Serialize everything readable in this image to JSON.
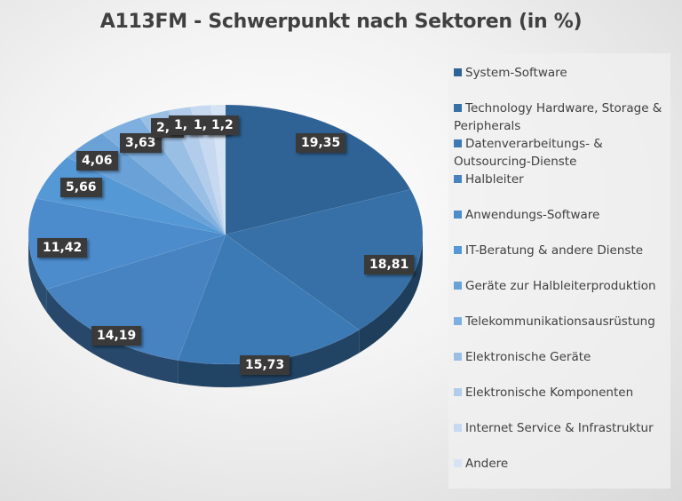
{
  "title": "A113FM - Schwerpunkt nach Sektoren (in %)",
  "legend": [
    {
      "label": "System-Software",
      "color": "#2f6396"
    },
    {
      "label": "Technology Hardware, Storage & Peripherals",
      "color": "#3670a6"
    },
    {
      "label": "Datenverarbeitungs- & Outsourcing-Dienste",
      "color": "#3c7ab5"
    },
    {
      "label": "Halbleiter",
      "color": "#4783c0"
    },
    {
      "label": "Anwendungs-Software",
      "color": "#4d8ccc"
    },
    {
      "label": "IT-Beratung & andere Dienste",
      "color": "#5598d6"
    },
    {
      "label": "Geräte zur Halbleiterproduktion",
      "color": "#6aa2d8"
    },
    {
      "label": "Telekommunikationsausrüstung",
      "color": "#7eafdf"
    },
    {
      "label": "Elektronische Geräte",
      "color": "#9abfe5"
    },
    {
      "label": "Elektronische Komponenten",
      "color": "#b2cdeb"
    },
    {
      "label": "Internet Service & Infrastruktur",
      "color": "#c6d9f0"
    },
    {
      "label": "Andere",
      "color": "#d6e3f4"
    }
  ],
  "data_labels": [
    "19,35",
    "18,81",
    "15,73",
    "14,19",
    "11,42",
    "5,66",
    "4,06",
    "3,63",
    "2,5",
    "1,8",
    "1,65",
    "1,2"
  ],
  "chart_data": {
    "type": "pie",
    "title": "A113FM - Schwerpunkt nach Sektoren (in %)",
    "categories": [
      "System-Software",
      "Technology Hardware, Storage & Peripherals",
      "Datenverarbeitungs- & Outsourcing-Dienste",
      "Halbleiter",
      "Anwendungs-Software",
      "IT-Beratung & andere Dienste",
      "Geräte zur Halbleiterproduktion",
      "Telekommunikationsausrüstung",
      "Elektronische Geräte",
      "Elektronische Komponenten",
      "Internet Service & Infrastruktur",
      "Andere"
    ],
    "values": [
      19.35,
      18.81,
      15.73,
      14.19,
      11.42,
      5.66,
      4.06,
      3.63,
      2.5,
      1.8,
      1.65,
      1.2
    ],
    "legend_position": "right",
    "style": "3d-pie",
    "note": "values 3.63, 2.5, 1.8, 1.65 partially obscured by overlapping labels; estimated"
  }
}
